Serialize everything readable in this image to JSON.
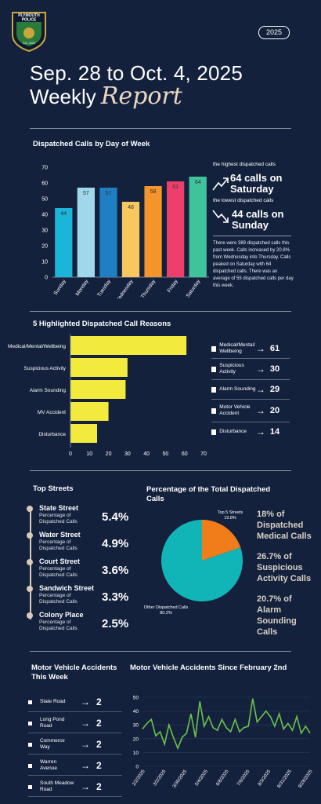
{
  "header": {
    "badge_top": "PLYMOUTH",
    "badge_mid": "POLICE",
    "badge_bottom": "A.D. 1620",
    "year": "2025",
    "title_line1": "Sep. 28 to Oct. 4, 2025",
    "title_line2_a": "Weekly",
    "title_line2_b": "Report"
  },
  "colors": {
    "background": "#14213d",
    "accent_yellow": "#f2ea3c",
    "pie_teal": "#12b5b7",
    "pie_orange": "#f07d1a",
    "line_green": "#6cc24a"
  },
  "day_chart": {
    "chart_data": {
      "type": "bar",
      "title": "Dispatched Calls by Day of Week",
      "categories": [
        "Sunday",
        "Monday",
        "Tuesday",
        "Wednesday",
        "Thursday",
        "Friday",
        "Saturday"
      ],
      "values": [
        44,
        57,
        57,
        48,
        58,
        61,
        64
      ],
      "colors": [
        "#1ab5d8",
        "#9ed8ea",
        "#1e7fc2",
        "#f8c85e",
        "#f4942a",
        "#ee3e6c",
        "#3fc39b"
      ],
      "ylim": [
        0,
        70
      ],
      "yticks": [
        0,
        10,
        20,
        30,
        40,
        50,
        60,
        70
      ]
    },
    "highest_label": "the highest dispatched calls",
    "highest_value": "64 calls on Saturday",
    "lowest_label": "the lowest dispatched calls",
    "lowest_value": "44 calls on Sunday",
    "summary": "There were 389 dispatched calls this past week. Calls increased by 20.8% from Wednesday into Thursday. Calls peaked on Saturday with 64 dispatched calls. There was an average of 55 dispatched calls per day this week."
  },
  "reasons_chart": {
    "chart_data": {
      "type": "bar",
      "title": "5 Highlighted Dispatched Call Reasons",
      "categories": [
        "Medical/Mental/Wellbeing",
        "Suspicious Activity",
        "Alarm Sounding",
        "MV Accident",
        "Disturbance"
      ],
      "values": [
        61,
        30,
        29,
        20,
        14
      ],
      "xlim": [
        0,
        70
      ],
      "xticks": [
        0,
        10,
        20,
        30,
        40,
        50,
        60,
        70
      ]
    },
    "legend": [
      {
        "label": "Medical/Mental/ Wellbeing",
        "value": "61"
      },
      {
        "label": "Suspicious Activity",
        "value": "30"
      },
      {
        "label": "Alarm Sounding",
        "value": "29"
      },
      {
        "label": "Motor Vehicle Accident",
        "value": "20"
      },
      {
        "label": "Disturbance",
        "value": "14"
      }
    ]
  },
  "top_streets": {
    "title": "Top Streets",
    "sub_label": "Percentage of Dispatched Calls",
    "items": [
      {
        "name": "State Street",
        "pct": "5.4%"
      },
      {
        "name": "Water Street",
        "pct": "4.9%"
      },
      {
        "name": "Court Street",
        "pct": "3.6%"
      },
      {
        "name": "Sandwich Street",
        "pct": "3.3%"
      },
      {
        "name": "Colony Place",
        "pct": "2.5%"
      }
    ]
  },
  "pie": {
    "title": "Percentage of the Total Dispatched Calls",
    "chart_data": {
      "type": "pie",
      "slices": [
        {
          "label": "Top 5 Streets",
          "value": 19.8,
          "display": "19.8%"
        },
        {
          "label": "Other Dispatched Calls",
          "value": 80.2,
          "display": "80.2%"
        }
      ]
    },
    "stats": [
      "18% of Dispatched Medical Calls",
      "26.7% of Suspicious Activity Calls",
      "20.7% of Alarm Sounding Calls"
    ]
  },
  "mva_week": {
    "title": "Motor Vehicle Accidents This Week",
    "items": [
      {
        "label": "State Road",
        "value": "2"
      },
      {
        "label": "Long Pond Road",
        "value": "2"
      },
      {
        "label": "Commerce Way",
        "value": "2"
      },
      {
        "label": "Warren Avenue",
        "value": "2"
      },
      {
        "label": "South Meadow Road",
        "value": "2"
      }
    ]
  },
  "mva_line": {
    "chart_data": {
      "type": "line",
      "title": "Motor Vehicle Accidents Since February 2nd",
      "ylim": [
        0,
        50
      ],
      "yticks": [
        0,
        10,
        20,
        30,
        40,
        50
      ],
      "xtick_labels": [
        "2/2/2025",
        "3/2/2025",
        "3/30/2025",
        "5/4/2025",
        "6/8/2025",
        "7/6/2025",
        "8/3/2025",
        "8/31/2025",
        "9/28/2025"
      ],
      "values": [
        27,
        31,
        34,
        22,
        25,
        16,
        30,
        21,
        13,
        21,
        24,
        38,
        21,
        47,
        29,
        36,
        28,
        26,
        34,
        28,
        25,
        34,
        25,
        28,
        29,
        49,
        32,
        36,
        40,
        36,
        29,
        38,
        27,
        31,
        26,
        36,
        24,
        29,
        24
      ]
    }
  }
}
